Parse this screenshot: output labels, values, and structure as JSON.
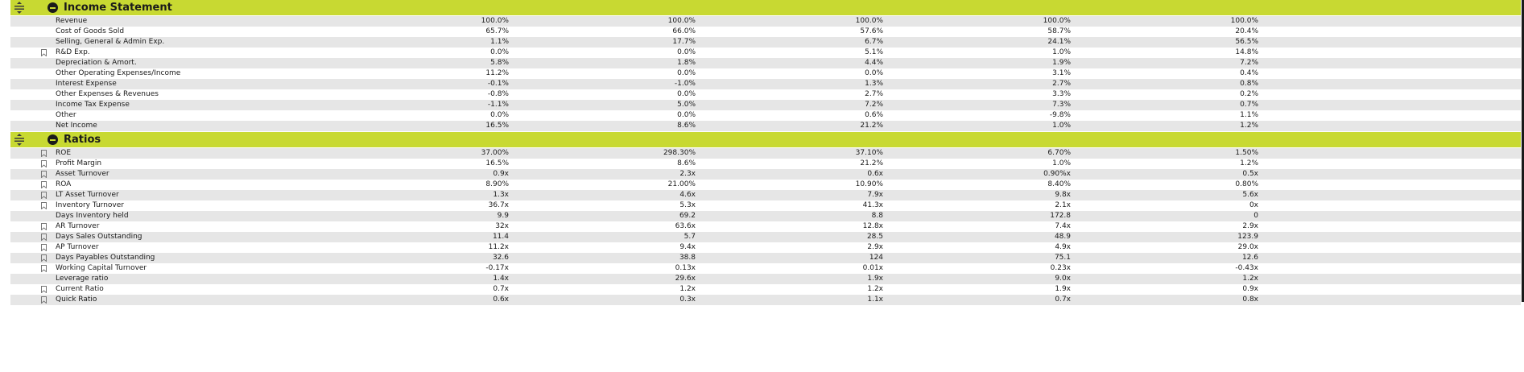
{
  "sections": [
    {
      "title": "Income Statement",
      "rows": [
        {
          "label": "Revenue",
          "bookmark": false,
          "values": [
            "100.0%",
            "100.0%",
            "100.0%",
            "100.0%",
            "100.0%"
          ]
        },
        {
          "label": "Cost of Goods Sold",
          "bookmark": false,
          "values": [
            "65.7%",
            "66.0%",
            "57.6%",
            "58.7%",
            "20.4%"
          ]
        },
        {
          "label": "Selling, General & Admin Exp.",
          "bookmark": false,
          "values": [
            "1.1%",
            "17.7%",
            "6.7%",
            "24.1%",
            "56.5%"
          ]
        },
        {
          "label": "R&D Exp.",
          "bookmark": true,
          "values": [
            "0.0%",
            "0.0%",
            "5.1%",
            "1.0%",
            "14.8%"
          ]
        },
        {
          "label": "Depreciation & Amort.",
          "bookmark": false,
          "values": [
            "5.8%",
            "1.8%",
            "4.4%",
            "1.9%",
            "7.2%"
          ]
        },
        {
          "label": "Other Operating Expenses/Income",
          "bookmark": false,
          "values": [
            "11.2%",
            "0.0%",
            "0.0%",
            "3.1%",
            "0.4%"
          ]
        },
        {
          "label": "Interest Expense",
          "bookmark": false,
          "values": [
            "-0.1%",
            "-1.0%",
            "1.3%",
            "2.7%",
            "0.8%"
          ]
        },
        {
          "label": "Other Expenses & Revenues",
          "bookmark": false,
          "values": [
            "-0.8%",
            "0.0%",
            "2.7%",
            "3.3%",
            "0.2%"
          ]
        },
        {
          "label": "Income Tax Expense",
          "bookmark": false,
          "values": [
            "-1.1%",
            "5.0%",
            "7.2%",
            "7.3%",
            "0.7%"
          ]
        },
        {
          "label": "Other",
          "bookmark": false,
          "values": [
            "0.0%",
            "0.0%",
            "0.6%",
            "-9.8%",
            "1.1%"
          ]
        },
        {
          "label": "Net Income",
          "bookmark": false,
          "values": [
            "16.5%",
            "8.6%",
            "21.2%",
            "1.0%",
            "1.2%"
          ]
        }
      ]
    },
    {
      "title": "Ratios",
      "rows": [
        {
          "label": "ROE",
          "bookmark": true,
          "values": [
            "37.00%",
            "298.30%",
            "37.10%",
            "6.70%",
            "1.50%"
          ]
        },
        {
          "label": "Profit Margin",
          "bookmark": true,
          "values": [
            "16.5%",
            "8.6%",
            "21.2%",
            "1.0%",
            "1.2%"
          ]
        },
        {
          "label": "Asset Turnover",
          "bookmark": true,
          "values": [
            "0.9x",
            "2.3x",
            "0.6x",
            "0.90%x",
            "0.5x"
          ]
        },
        {
          "label": "ROA",
          "bookmark": true,
          "values": [
            "8.90%",
            "21.00%",
            "10.90%",
            "8.40%",
            "0.80%"
          ]
        },
        {
          "label": "LT Asset Turnover",
          "bookmark": true,
          "values": [
            "1.3x",
            "4.6x",
            "7.9x",
            "9.8x",
            "5.6x"
          ]
        },
        {
          "label": "Inventory Turnover",
          "bookmark": true,
          "values": [
            "36.7x",
            "5.3x",
            "41.3x",
            "2.1x",
            "0x"
          ]
        },
        {
          "label": "Days Inventory held",
          "bookmark": false,
          "values": [
            "9.9",
            "69.2",
            "8.8",
            "172.8",
            "0"
          ]
        },
        {
          "label": "AR Turnover",
          "bookmark": true,
          "values": [
            "32x",
            "63.6x",
            "12.8x",
            "7.4x",
            "2.9x"
          ]
        },
        {
          "label": "Days Sales Outstanding",
          "bookmark": true,
          "values": [
            "11.4",
            "5.7",
            "28.5",
            "48.9",
            "123.9"
          ]
        },
        {
          "label": "AP Turnover",
          "bookmark": true,
          "values": [
            "11.2x",
            "9.4x",
            "2.9x",
            "4.9x",
            "29.0x"
          ]
        },
        {
          "label": "Days Payables Outstanding",
          "bookmark": true,
          "values": [
            "32.6",
            "38.8",
            "124",
            "75.1",
            "12.6"
          ]
        },
        {
          "label": "Working Capital Turnover",
          "bookmark": true,
          "values": [
            "-0.17x",
            "0.13x",
            "0.01x",
            "0.23x",
            "-0.43x"
          ]
        },
        {
          "label": "Leverage ratio",
          "bookmark": false,
          "values": [
            "1.4x",
            "29.6x",
            "1.9x",
            "9.0x",
            "1.2x"
          ]
        },
        {
          "label": "Current Ratio",
          "bookmark": true,
          "values": [
            "0.7x",
            "1.2x",
            "1.2x",
            "1.9x",
            "0.9x"
          ]
        },
        {
          "label": "Quick Ratio",
          "bookmark": true,
          "values": [
            "0.6x",
            "0.3x",
            "1.1x",
            "0.7x",
            "0.8x"
          ]
        }
      ]
    }
  ],
  "colors": {
    "header": "#c8d932",
    "shade": "#e6e6e6",
    "text": "#1a1a1a"
  },
  "icons": {
    "drag": "drag-handle-icon",
    "collapse": "minus-circle-icon",
    "bookmark": "bookmark-icon"
  }
}
